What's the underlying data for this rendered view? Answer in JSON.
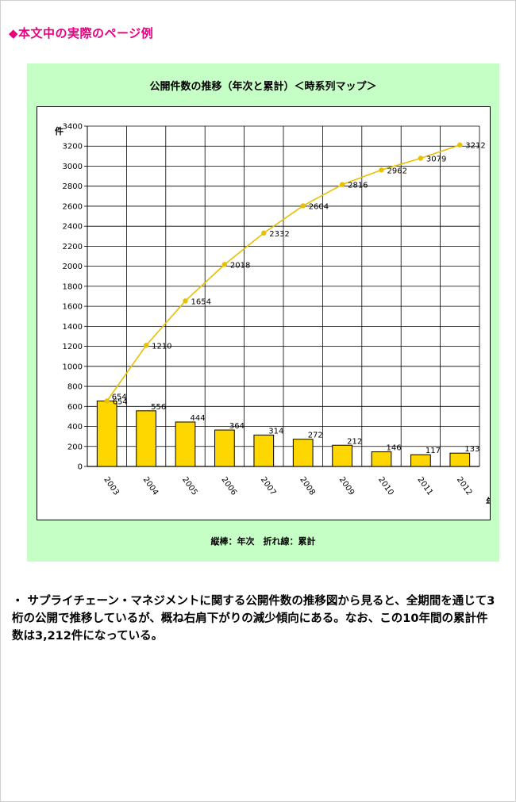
{
  "heading": "◆本文中の実際のページ例",
  "caption": "縦棒：年次　折れ線：累計",
  "body_text": "・ サプライチェーン・マネジメントに関する公開件数の推移図から見ると、全期間を通じて3桁の公開で推移しているが、概ね右肩下がりの減少傾向にある。なお、この10年間の累計件数は3,212件になっている。",
  "colors": {
    "bar": "#ffd700",
    "line": "#e8c000",
    "panel": "#c6ffc6",
    "heading": "#e6007e"
  },
  "chart_data": {
    "type": "bar",
    "title": "公開件数の推移（年次と累計）＜時系列マップ＞",
    "xlabel": "年",
    "ylabel": "件",
    "ylim": [
      0,
      3400
    ],
    "ytick_step": 200,
    "grid": true,
    "categories": [
      "2003",
      "2004",
      "2005",
      "2006",
      "2007",
      "2008",
      "2009",
      "2010",
      "2011",
      "2012"
    ],
    "series": [
      {
        "type": "bar",
        "values": [
          654,
          556,
          444,
          364,
          314,
          272,
          212,
          146,
          117,
          133
        ]
      },
      {
        "type": "line",
        "values": [
          654,
          1210,
          1654,
          2018,
          2332,
          2604,
          2816,
          2962,
          3079,
          3212
        ]
      }
    ]
  }
}
